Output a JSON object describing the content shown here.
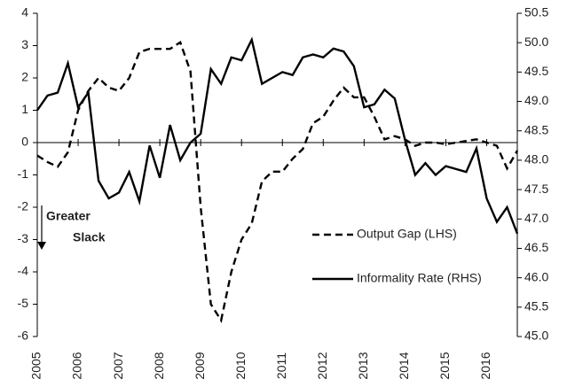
{
  "chart_data": {
    "type": "line",
    "x": [
      2005,
      2005.25,
      2005.5,
      2005.75,
      2006,
      2006.25,
      2006.5,
      2006.75,
      2007,
      2007.25,
      2007.5,
      2007.75,
      2008,
      2008.25,
      2008.5,
      2008.75,
      2009,
      2009.25,
      2009.5,
      2009.75,
      2010,
      2010.25,
      2010.5,
      2010.75,
      2011,
      2011.25,
      2011.5,
      2011.75,
      2012,
      2012.25,
      2012.5,
      2012.75,
      2013,
      2013.25,
      2013.5,
      2013.75,
      2014,
      2014.25,
      2014.5,
      2014.75,
      2015,
      2015.25,
      2015.5,
      2015.75,
      2016,
      2016.25,
      2016.5,
      2016.75
    ],
    "series": [
      {
        "name": "Output Gap (LHS)",
        "color": "#000000",
        "dash": true,
        "axis": "y",
        "values": [
          -0.4,
          -0.6,
          -0.75,
          -0.3,
          1.0,
          1.6,
          2.0,
          1.7,
          1.6,
          2.0,
          2.8,
          2.9,
          2.9,
          2.9,
          3.1,
          2.2,
          -2.0,
          -5.0,
          -5.5,
          -4.0,
          -3.0,
          -2.5,
          -1.2,
          -0.9,
          -0.9,
          -0.5,
          -0.2,
          0.6,
          0.8,
          1.3,
          1.7,
          1.4,
          1.4,
          0.8,
          0.1,
          0.2,
          0.1,
          -0.1,
          0.0,
          0.0,
          -0.05,
          0.0,
          0.05,
          0.1,
          0.0,
          -0.1,
          -0.8,
          -0.25
        ]
      },
      {
        "name": "Informality Rate (RHS)",
        "color": "#000000",
        "dash": false,
        "axis": "y2",
        "values": [
          48.85,
          49.1,
          49.15,
          49.65,
          48.9,
          49.15,
          47.65,
          47.35,
          47.45,
          47.8,
          47.3,
          48.25,
          47.7,
          48.6,
          48.0,
          48.3,
          48.45,
          49.55,
          49.3,
          49.75,
          49.7,
          50.05,
          49.3,
          49.4,
          49.5,
          49.45,
          49.75,
          49.8,
          49.75,
          49.9,
          49.85,
          49.6,
          48.9,
          48.95,
          49.2,
          49.05,
          48.35,
          47.75,
          47.95,
          47.75,
          47.9,
          47.85,
          47.8,
          48.2,
          47.35,
          46.95,
          47.2,
          46.75
        ]
      }
    ],
    "xlim": [
      2005,
      2016.75
    ],
    "xticks": [
      2005,
      2006,
      2007,
      2008,
      2009,
      2010,
      2011,
      2012,
      2013,
      2014,
      2015,
      2016
    ],
    "ylim": [
      -6,
      4
    ],
    "yticks": [
      -6,
      -5,
      -4,
      -3,
      -2,
      -1,
      0,
      1,
      2,
      3,
      4
    ],
    "y2lim": [
      45,
      50.5
    ],
    "y2ticks": [
      {
        "value": 45,
        "label": "45.0"
      },
      45.5,
      {
        "value": 46,
        "label": "46.0"
      },
      46.5,
      {
        "value": 47,
        "label": "47.0"
      },
      47.5,
      {
        "value": 48,
        "label": "48.0"
      },
      48.5,
      {
        "value": 49,
        "label": "49.0"
      },
      49.5,
      {
        "value": 50,
        "label": "50.0"
      },
      50.5
    ],
    "annotations": [
      "Greater",
      "Slack"
    ],
    "legend": "lower right"
  }
}
